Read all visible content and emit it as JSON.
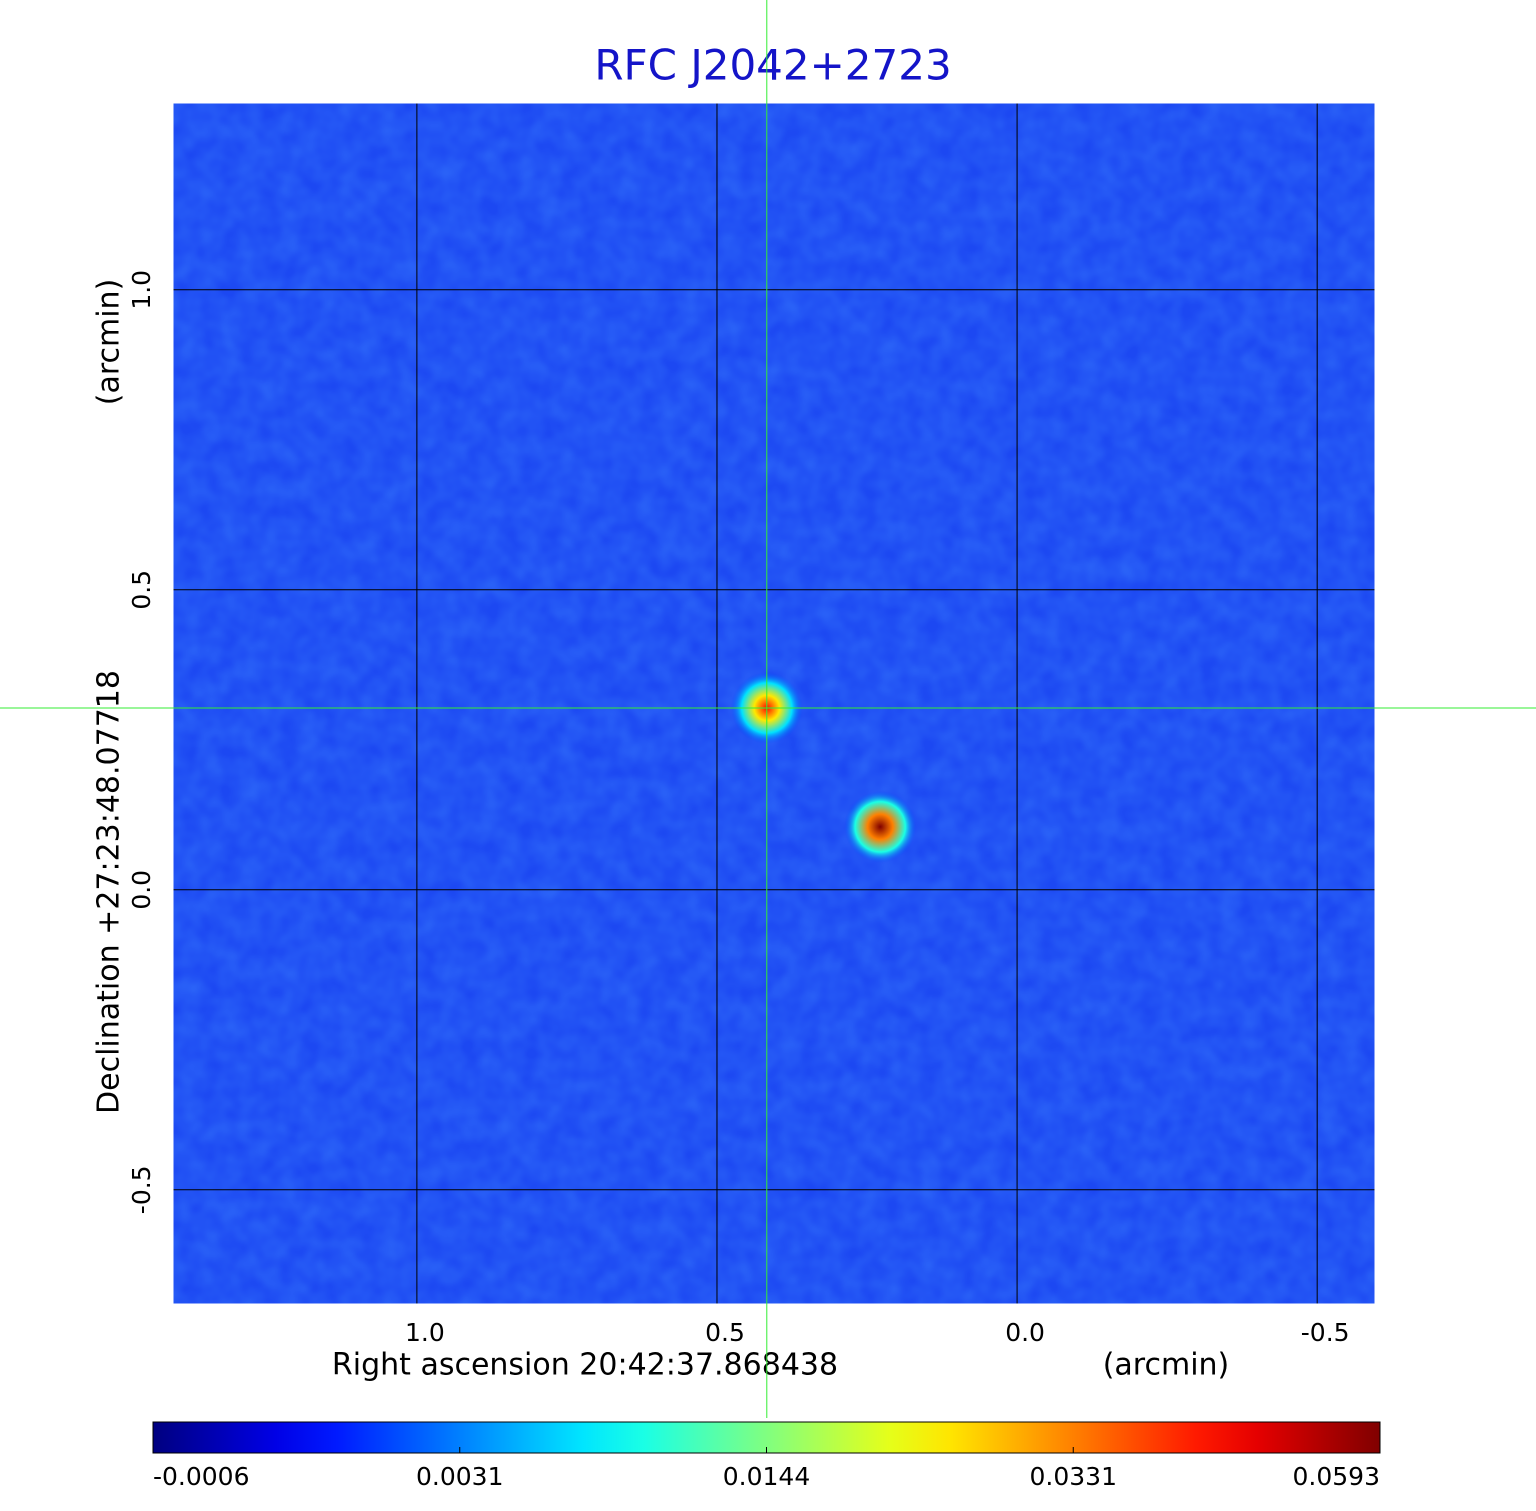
{
  "chart_data": {
    "type": "image",
    "title": "RFC J2042+2723",
    "xlabel": "Right ascension  20:42:37.868438",
    "xunit": "(arcmin)",
    "ylabel": "Declination  +27:23:48.07718",
    "yunit": "(arcmin)",
    "xlim": [
      1.408,
      -0.598
    ],
    "ylim": [
      -0.692,
      1.313
    ],
    "xticks": [
      {
        "value": 1,
        "label": "1.0"
      },
      0.5,
      {
        "value": 0,
        "label": "0.0"
      },
      -0.5
    ],
    "yticks": [
      {
        "value": 1,
        "label": "1.0"
      },
      0.5,
      {
        "value": 0,
        "label": "0.0"
      },
      -0.5
    ],
    "grid": true,
    "colormap": "jet",
    "crosshair": {
      "x": 0.417,
      "y": 0.303,
      "color": "#33ee33"
    },
    "colorbar": {
      "ticks": [
        -0.0006,
        0.0031,
        0.0144,
        0.0331,
        0.0593
      ]
    },
    "sources": {
      "x": [
        0.417,
        0.228
      ],
      "y": [
        0.303,
        0.105
      ],
      "peak": [
        0.045,
        0.0593
      ]
    }
  }
}
